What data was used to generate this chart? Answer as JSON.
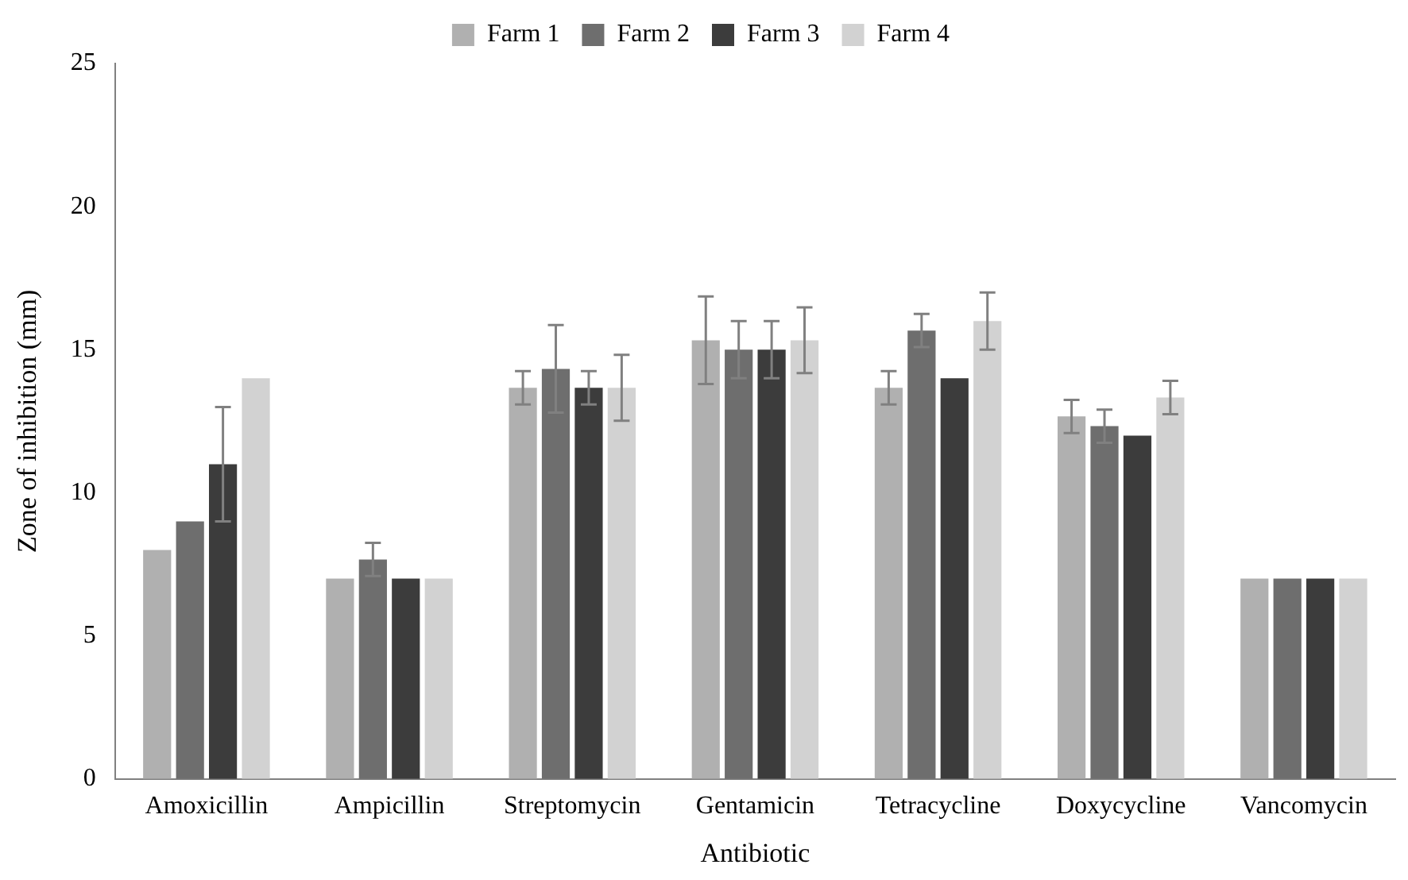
{
  "chart_data": {
    "type": "bar",
    "xlabel": "Antibiotic",
    "ylabel": "Zone of inhibition (mm)",
    "categories": [
      "Amoxicillin",
      "Ampicillin",
      "Streptomycin",
      "Gentamicin",
      "Tetracycline",
      "Doxycycline",
      "Vancomycin"
    ],
    "series": [
      {
        "name": "Farm 1",
        "color": "#b0b0b0",
        "values": [
          8,
          7,
          13.67,
          15.33,
          13.67,
          12.67,
          7
        ],
        "errors": [
          null,
          null,
          0.58,
          1.53,
          0.58,
          0.58,
          null
        ]
      },
      {
        "name": "Farm 2",
        "color": "#6e6e6e",
        "values": [
          9,
          7.67,
          14.33,
          15,
          15.67,
          12.33,
          7
        ],
        "errors": [
          null,
          0.58,
          1.53,
          1,
          0.58,
          0.58,
          null
        ]
      },
      {
        "name": "Farm 3",
        "color": "#3c3c3c",
        "values": [
          11,
          7,
          13.67,
          15,
          14,
          12,
          7
        ],
        "errors": [
          2,
          null,
          0.58,
          1,
          null,
          null,
          null
        ]
      },
      {
        "name": "Farm 4",
        "color": "#d2d2d2",
        "values": [
          14,
          7,
          13.67,
          15.33,
          16,
          13.33,
          7
        ],
        "errors": [
          null,
          null,
          1.15,
          1.15,
          1,
          0.58,
          null
        ]
      }
    ],
    "ylim": [
      0,
      25
    ],
    "yticks": [
      0,
      5,
      10,
      15,
      20,
      25
    ],
    "grid": false,
    "legend": "top"
  }
}
